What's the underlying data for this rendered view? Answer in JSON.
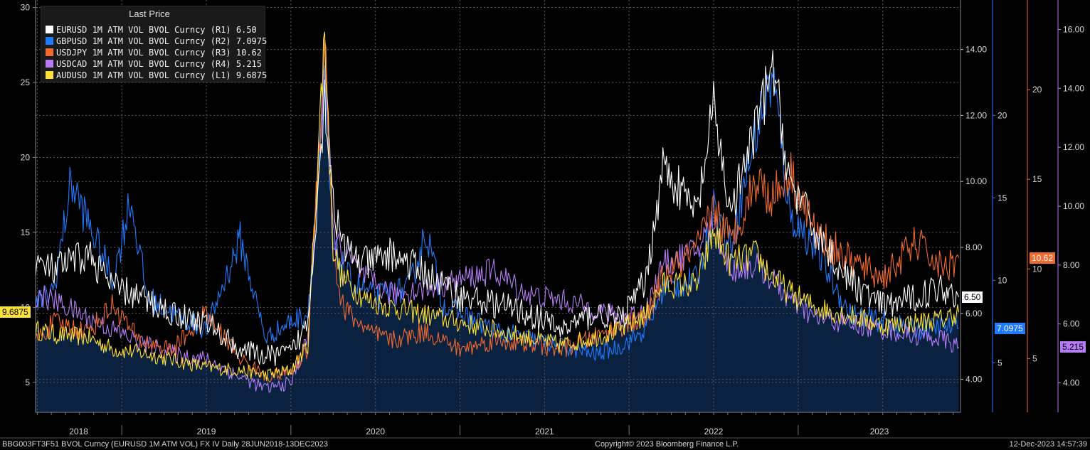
{
  "chart_data": {
    "type": "line",
    "legend": {
      "title": "Last Price",
      "placement": "top-left",
      "items": [
        {
          "label": "EURUSD 1M ATM VOL BVOL Curncy",
          "axis": "(R1)",
          "last": "6.50",
          "color": "#ffffff"
        },
        {
          "label": "GBPUSD 1M ATM VOL BVOL Curncy",
          "axis": "(R2)",
          "last": "7.0975",
          "color": "#1f7bff"
        },
        {
          "label": "USDJPY 1M ATM VOL BVOL Curncy",
          "axis": "(R3)",
          "last": "10.62",
          "color": "#f26a2e"
        },
        {
          "label": "USDCAD 1M ATM VOL BVOL Curncy",
          "axis": "(R4)",
          "last": "5.215",
          "color": "#b57cf5"
        },
        {
          "label": "AUDUSD 1M ATM VOL BVOL Curncy",
          "axis": "(L1)",
          "last": "9.6875",
          "color": "#ffe236"
        }
      ]
    },
    "x_axis": {
      "labels": [
        "2018",
        "2019",
        "2020",
        "2021",
        "2022",
        "2023"
      ],
      "range": [
        "2018-06-28",
        "2023-12-13"
      ]
    },
    "axes": {
      "L1": {
        "min": 3,
        "max": 30.5,
        "ticks": [
          5,
          10,
          15,
          20,
          25,
          30
        ],
        "last_label": "9.6875",
        "color": "#ffe236"
      },
      "R1": {
        "min": 3,
        "max": 15.5,
        "ticks": [
          "4.00",
          "6.00",
          "8.00",
          "10.00",
          "12.00",
          "14.00"
        ],
        "last_label": "6.50",
        "color": "#ffffff"
      },
      "R2": {
        "min": 2,
        "max": 27,
        "ticks": [
          5,
          10,
          15,
          20
        ],
        "last_label": "7.0975",
        "color": "#1f7bff"
      },
      "R3": {
        "min": 2,
        "max": 25,
        "ticks": [
          5,
          10,
          15,
          20
        ],
        "last_label": "10.62",
        "color": "#f26a2e"
      },
      "R4": {
        "min": 3,
        "max": 17,
        "ticks": [
          "4.00",
          "6.00",
          "8.00",
          "10.00",
          "12.00",
          "14.00",
          "16.00"
        ],
        "last_label": "5.215",
        "color": "#b57cf5"
      }
    },
    "series": [
      {
        "name": "EURUSD 1M ATM VOL BVOL Curncy",
        "axis": "R1",
        "color": "#ffffff",
        "x": [
          2018.49,
          2018.6,
          2018.8,
          2018.95,
          2019.1,
          2019.3,
          2019.5,
          2019.7,
          2019.85,
          2020.0,
          2020.1,
          2020.2,
          2020.25,
          2020.3,
          2020.45,
          2020.6,
          2020.8,
          2021.0,
          2021.2,
          2021.4,
          2021.6,
          2021.8,
          2021.95,
          2022.1,
          2022.2,
          2022.4,
          2022.5,
          2022.6,
          2022.75,
          2022.85,
          2022.95,
          2023.1,
          2023.3,
          2023.5,
          2023.7,
          2023.85,
          2023.95
        ],
        "y": [
          7.5,
          7.3,
          7.8,
          6.8,
          6.5,
          6.0,
          5.7,
          4.9,
          4.7,
          4.8,
          5.7,
          12.6,
          9.5,
          8.0,
          7.5,
          7.8,
          7.2,
          6.5,
          6.3,
          6.0,
          5.5,
          6.0,
          5.8,
          7.0,
          10.5,
          9.0,
          12.2,
          9.0,
          11.6,
          13.5,
          10.0,
          8.5,
          7.0,
          6.2,
          6.5,
          6.8,
          6.5
        ]
      },
      {
        "name": "GBPUSD 1M ATM VOL BVOL Curncy",
        "axis": "R2",
        "color": "#1f7bff",
        "x": [
          2018.49,
          2018.6,
          2018.7,
          2018.8,
          2018.95,
          2019.05,
          2019.15,
          2019.3,
          2019.5,
          2019.7,
          2019.85,
          2020.0,
          2020.1,
          2020.2,
          2020.25,
          2020.35,
          2020.5,
          2020.7,
          2020.8,
          2020.9,
          2021.0,
          2021.2,
          2021.4,
          2021.6,
          2021.8,
          2021.95,
          2022.1,
          2022.2,
          2022.4,
          2022.5,
          2022.6,
          2022.75,
          2022.85,
          2022.95,
          2023.1,
          2023.3,
          2023.5,
          2023.7,
          2023.85,
          2023.95
        ],
        "y": [
          8.5,
          9.5,
          16.0,
          13.5,
          10.0,
          15.0,
          9.0,
          8.0,
          7.0,
          12.5,
          6.5,
          7.5,
          8.0,
          21.5,
          12.0,
          10.0,
          9.0,
          9.5,
          13.0,
          8.5,
          8.0,
          7.0,
          6.5,
          6.0,
          5.5,
          6.0,
          7.0,
          9.5,
          10.0,
          14.5,
          12.0,
          19.0,
          22.5,
          14.0,
          12.0,
          8.0,
          7.5,
          7.0,
          7.2,
          7.0975
        ]
      },
      {
        "name": "USDJPY 1M ATM VOL BVOL Curncy",
        "axis": "R3",
        "color": "#f26a2e",
        "x": [
          2018.49,
          2018.6,
          2018.8,
          2018.95,
          2019.1,
          2019.3,
          2019.5,
          2019.7,
          2019.85,
          2020.0,
          2020.1,
          2020.2,
          2020.25,
          2020.3,
          2020.45,
          2020.6,
          2020.8,
          2021.0,
          2021.2,
          2021.4,
          2021.6,
          2021.8,
          2021.95,
          2022.1,
          2022.2,
          2022.4,
          2022.5,
          2022.6,
          2022.75,
          2022.85,
          2022.95,
          2023.1,
          2023.3,
          2023.5,
          2023.7,
          2023.85,
          2023.95
        ],
        "y": [
          6.0,
          7.0,
          6.5,
          8.0,
          6.0,
          5.5,
          7.5,
          5.0,
          4.0,
          4.2,
          5.5,
          23.0,
          11.0,
          8.0,
          6.5,
          6.0,
          6.5,
          5.5,
          6.0,
          5.8,
          5.5,
          6.2,
          6.8,
          7.2,
          9.5,
          11.0,
          13.5,
          11.5,
          15.0,
          14.0,
          15.5,
          12.0,
          10.5,
          9.5,
          11.5,
          10.0,
          10.62
        ]
      },
      {
        "name": "USDCAD 1M ATM VOL BVOL Curncy",
        "axis": "R4",
        "color": "#b57cf5",
        "x": [
          2018.49,
          2018.6,
          2018.8,
          2018.95,
          2019.1,
          2019.3,
          2019.5,
          2019.7,
          2019.85,
          2020.0,
          2020.1,
          2020.2,
          2020.25,
          2020.3,
          2020.45,
          2020.6,
          2020.8,
          2021.0,
          2021.2,
          2021.4,
          2021.6,
          2021.8,
          2021.95,
          2022.1,
          2022.2,
          2022.4,
          2022.5,
          2022.6,
          2022.75,
          2022.85,
          2022.95,
          2023.1,
          2023.3,
          2023.5,
          2023.7,
          2023.85,
          2023.95
        ],
        "y": [
          7.0,
          6.8,
          6.2,
          5.8,
          5.4,
          5.0,
          4.8,
          4.2,
          3.8,
          4.0,
          5.5,
          15.0,
          9.0,
          8.5,
          7.5,
          7.0,
          7.2,
          7.5,
          7.8,
          7.0,
          6.8,
          6.5,
          6.2,
          6.5,
          8.0,
          8.5,
          9.5,
          7.8,
          8.0,
          7.5,
          6.8,
          6.2,
          6.0,
          5.8,
          5.6,
          5.5,
          5.215
        ]
      },
      {
        "name": "AUDUSD 1M ATM VOL BVOL Curncy",
        "axis": "L1",
        "color": "#ffe236",
        "x": [
          2018.49,
          2018.6,
          2018.8,
          2018.95,
          2019.1,
          2019.3,
          2019.5,
          2019.7,
          2019.85,
          2020.0,
          2020.1,
          2020.2,
          2020.25,
          2020.3,
          2020.45,
          2020.6,
          2020.8,
          2021.0,
          2021.2,
          2021.4,
          2021.6,
          2021.8,
          2021.95,
          2022.1,
          2022.2,
          2022.4,
          2022.5,
          2022.6,
          2022.75,
          2022.85,
          2022.95,
          2023.1,
          2023.3,
          2023.5,
          2023.7,
          2023.85,
          2023.95
        ],
        "y": [
          8.5,
          8.2,
          8.0,
          7.2,
          7.0,
          6.5,
          6.0,
          5.8,
          5.5,
          5.8,
          7.5,
          28.5,
          14.0,
          12.0,
          10.5,
          10.0,
          9.5,
          9.0,
          8.5,
          8.0,
          7.5,
          8.0,
          8.5,
          9.5,
          11.5,
          11.5,
          15.0,
          13.0,
          13.5,
          12.0,
          11.0,
          10.0,
          9.5,
          8.8,
          9.0,
          9.2,
          9.6875
        ]
      }
    ]
  },
  "footer": {
    "left": "BBG003FT3F51 BVOL Curncy (EURUSD 1M ATM VOL) FX IV  Daily 28JUN2018-13DEC2023",
    "center": "Copyright© 2023 Bloomberg Finance L.P.",
    "right": "12-Dec-2023 14:57:39"
  }
}
